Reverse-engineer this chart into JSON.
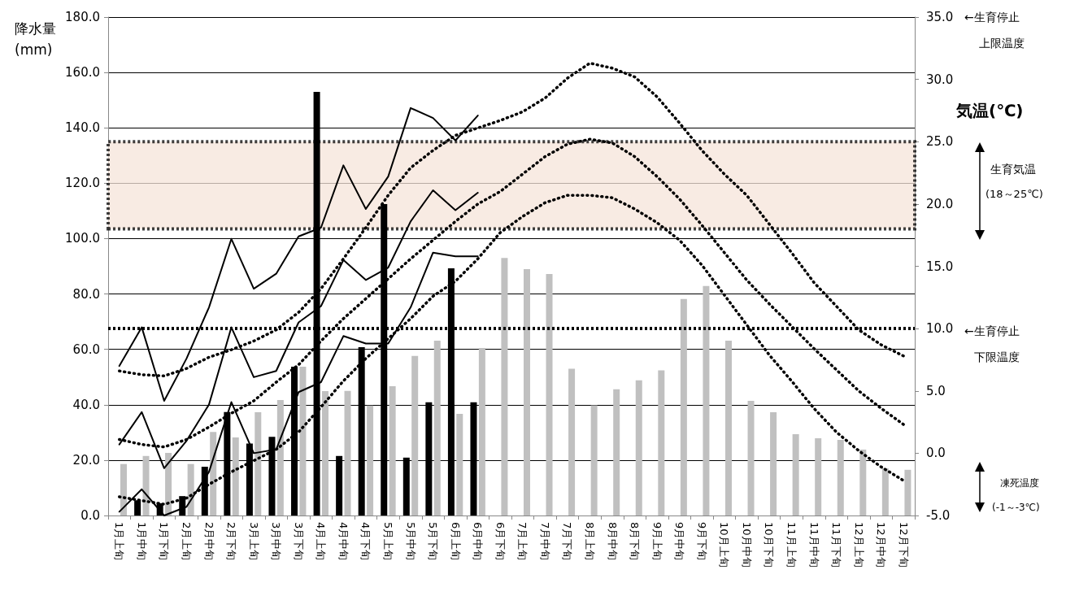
{
  "chart_data": {
    "type": "bar",
    "ylabel": "降水量(mm)",
    "y2label": "気温(℃)",
    "categories": [
      "1月上旬",
      "1月中旬",
      "1月下旬",
      "2月上旬",
      "2月中旬",
      "2月下旬",
      "3月上旬",
      "3月中旬",
      "3月下旬",
      "4月上旬",
      "4月中旬",
      "4月下旬",
      "5月上旬",
      "5月中旬",
      "5月下旬",
      "6月上旬",
      "6月中旬",
      "6月下旬",
      "7月上旬",
      "7月中旬",
      "7月下旬",
      "8月上旬",
      "8月中旬",
      "8月下旬",
      "9月上旬",
      "9月中旬",
      "9月下旬",
      "10月上旬",
      "10月中旬",
      "10月下旬",
      "11月上旬",
      "11月中旬",
      "11月下旬",
      "12月上旬",
      "12月中旬",
      "12月下旬"
    ],
    "series": [
      {
        "color": "#000000",
        "values": [
          null,
          5.5,
          4.4,
          7,
          17.6,
          37.4,
          26,
          28.4,
          53.7,
          153,
          21.5,
          60.8,
          112.5,
          20.9,
          40.9,
          89.3,
          40.9,
          null,
          null,
          null,
          null,
          null,
          null,
          null,
          null,
          null,
          null,
          null,
          null,
          null,
          null,
          null,
          null,
          null,
          null,
          null
        ]
      },
      {
        "color": "#c0c0c0",
        "values": [
          18.6,
          21.5,
          22.6,
          18.6,
          30.2,
          28.2,
          37.3,
          41.7,
          53.7,
          44.9,
          45,
          39.7,
          46.7,
          57.6,
          63.1,
          36.7,
          60.5,
          93,
          89,
          87.2,
          53,
          39.8,
          45.6,
          48.8,
          52.4,
          78.2,
          82.9,
          63.1,
          41.4,
          37.3,
          29.4,
          27.9,
          27.3,
          23.8,
          17,
          16.5
        ]
      },
      {
        "type": "line",
        "axis": "y2",
        "color": "#000000",
        "line_style": "solid",
        "values": [
          7.0,
          10.1,
          4.2,
          7.6,
          11.7,
          17.2,
          13.2,
          14.4,
          17.4,
          18.1,
          23.1,
          19.6,
          22.2,
          27.7,
          26.9,
          25.1,
          27.1,
          null,
          null,
          null,
          null,
          null,
          null,
          null,
          null,
          null,
          null,
          null,
          null,
          null,
          null,
          null,
          null,
          null,
          null,
          null
        ]
      },
      {
        "type": "line",
        "axis": "y2",
        "color": "#000000",
        "line_style": "solid",
        "values": [
          0.7,
          3.3,
          -1.2,
          1.0,
          3.9,
          10.1,
          6.1,
          6.6,
          10.5,
          11.8,
          15.5,
          13.9,
          14.9,
          18.6,
          21.1,
          19.5,
          20.9,
          null,
          null,
          null,
          null,
          null,
          null,
          null,
          null,
          null,
          null,
          null,
          null,
          null,
          null,
          null,
          null,
          null,
          null,
          null
        ]
      },
      {
        "type": "line",
        "axis": "y2",
        "color": "#000000",
        "line_style": "solid",
        "values": [
          -4.7,
          -2.9,
          -5,
          -4.3,
          -1.5,
          4.1,
          0.0,
          0.3,
          4.9,
          5.7,
          9.4,
          8.8,
          8.8,
          11.7,
          16.1,
          15.8,
          15.8,
          null,
          null,
          null,
          null,
          null,
          null,
          null,
          null,
          null,
          null,
          null,
          null,
          null,
          null,
          null,
          null,
          null,
          null,
          null
        ]
      },
      {
        "type": "line",
        "axis": "y2",
        "color": "#000000",
        "line_style": "dotted",
        "values": [
          6.6,
          6.3,
          6.2,
          6.8,
          7.7,
          8.3,
          9.0,
          9.9,
          11.3,
          13.2,
          15.6,
          18.1,
          20.7,
          22.9,
          24.3,
          25.5,
          26.1,
          26.7,
          27.4,
          28.5,
          30.1,
          31.3,
          30.9,
          30.2,
          28.6,
          26.5,
          24.3,
          22.4,
          20.7,
          18.4,
          16.1,
          13.7,
          11.8,
          9.9,
          8.7,
          7.8
        ]
      },
      {
        "type": "line",
        "axis": "y2",
        "color": "#000000",
        "line_style": "dotted",
        "values": [
          1.1,
          0.7,
          0.5,
          1.1,
          2.1,
          3.2,
          4.2,
          5.7,
          7.1,
          9.0,
          10.8,
          12.4,
          14.0,
          15.6,
          17.1,
          18.6,
          20.0,
          21.0,
          22.4,
          23.8,
          24.8,
          25.2,
          24.9,
          23.8,
          22.2,
          20.4,
          18.3,
          16.1,
          13.9,
          12.0,
          10.2,
          8.4,
          6.7,
          5.0,
          3.6,
          2.3
        ]
      },
      {
        "type": "line",
        "axis": "y2",
        "color": "#000000",
        "line_style": "dotted",
        "values": [
          -3.5,
          -3.8,
          -4.1,
          -3.6,
          -2.5,
          -1.5,
          -0.6,
          0.3,
          1.7,
          3.7,
          5.8,
          7.6,
          9.2,
          10.8,
          12.6,
          13.8,
          15.6,
          17.7,
          19.0,
          20.1,
          20.7,
          20.7,
          20.5,
          19.6,
          18.5,
          17.1,
          15.1,
          12.7,
          10.3,
          7.9,
          5.8,
          3.6,
          1.7,
          0.2,
          -1.1,
          -2.2
        ]
      }
    ],
    "ylim": [
      0,
      180
    ],
    "yticks": [
      {
        "value": 0,
        "label": "0.0"
      },
      {
        "value": 20,
        "label": "20.0"
      },
      {
        "value": 40,
        "label": "40.0"
      },
      {
        "value": 60,
        "label": "60.0"
      },
      {
        "value": 80,
        "label": "80.0"
      },
      {
        "value": 100,
        "label": "100.0"
      },
      {
        "value": 120,
        "label": "120.0"
      },
      {
        "value": 140,
        "label": "140.0"
      },
      {
        "value": 160,
        "label": "160.0"
      },
      {
        "value": 180,
        "label": "180.0"
      }
    ],
    "y2lim": [
      -5,
      35
    ],
    "y2ticks": [
      {
        "value": -5,
        "label": "-5.0"
      },
      {
        "value": 0,
        "label": "0.0"
      },
      {
        "value": 5,
        "label": "5.0"
      },
      {
        "value": 10,
        "label": "10.0"
      },
      {
        "value": 15,
        "label": "15.0"
      },
      {
        "value": 20,
        "label": "20.0"
      },
      {
        "value": 25,
        "label": "25.0"
      },
      {
        "value": 30,
        "label": "30.0"
      },
      {
        "value": 35,
        "label": "35.0"
      }
    ],
    "bands": [
      {
        "axis": "y2",
        "from": 18,
        "to": 25,
        "color": "#f5e4da"
      }
    ],
    "ref_lines": [
      {
        "axis": "y2",
        "value": 10,
        "line_style": "dotted",
        "color": "#000000"
      }
    ],
    "annotations": [
      "←生育停止",
      "上限温度",
      "生育気温",
      "(18～25℃)",
      "←生育停止",
      "下限温度",
      "凍死温度",
      "(-1～-3℃)"
    ],
    "grid": "y",
    "marker": "none"
  }
}
